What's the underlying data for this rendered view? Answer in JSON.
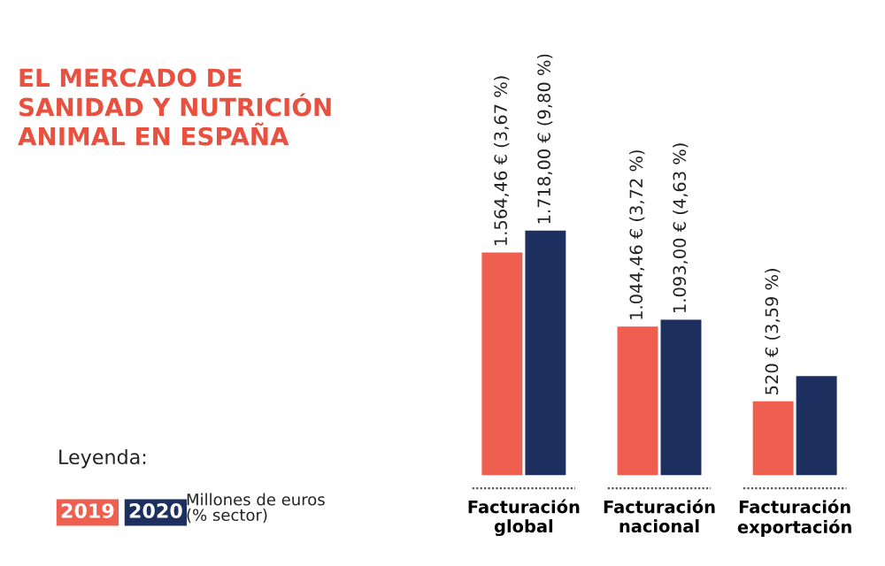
{
  "chart_data": {
    "type": "bar",
    "title": "EL MERCADO DE\nSANIDAD Y NUTRICIÓN\nANIMAL EN ESPAÑA",
    "categories": [
      "Facturación\nglobal",
      "Facturación\nnacional",
      "Facturación\nexportación"
    ],
    "series": [
      {
        "name": "2019",
        "color": "#ee5f50",
        "values": [
          1564.46,
          1044.46,
          520
        ],
        "value_labels": [
          "1.564,46 € (3,67 %)",
          "1.044,46 € (3,72 %)",
          "520 € (3,59 %)"
        ]
      },
      {
        "name": "2020",
        "color": "#1c2f5f",
        "values": [
          1718.0,
          1093.0,
          697
        ],
        "value_labels": [
          "1.718,00 € (9,80 %)",
          "1.093,00 € (4,63 %)",
          null
        ]
      }
    ],
    "legend_title": "Leyenda:",
    "legend": "bottom left",
    "annotations": [
      "Millones de euros\n(% sector)"
    ]
  }
}
